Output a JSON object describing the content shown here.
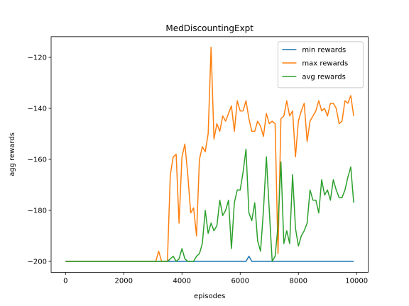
{
  "chart_data": {
    "type": "line",
    "title": "MedDiscountingExpt",
    "x_label": "episodes",
    "y_label": "agg rewards",
    "x": [
      0,
      100,
      200,
      300,
      400,
      500,
      600,
      700,
      800,
      900,
      1000,
      1100,
      1200,
      1300,
      1400,
      1500,
      1600,
      1700,
      1800,
      1900,
      2000,
      2100,
      2200,
      2300,
      2400,
      2500,
      2600,
      2700,
      2800,
      2900,
      3000,
      3100,
      3200,
      3300,
      3400,
      3500,
      3600,
      3700,
      3800,
      3900,
      4000,
      4100,
      4200,
      4300,
      4400,
      4500,
      4600,
      4700,
      4800,
      4900,
      5000,
      5100,
      5200,
      5300,
      5400,
      5500,
      5600,
      5700,
      5800,
      5900,
      6000,
      6100,
      6200,
      6300,
      6400,
      6500,
      6600,
      6700,
      6800,
      6900,
      7000,
      7100,
      7200,
      7300,
      7400,
      7500,
      7600,
      7700,
      7800,
      7900,
      8000,
      8100,
      8200,
      8300,
      8400,
      8500,
      8600,
      8700,
      8800,
      8900,
      9000,
      9100,
      9200,
      9300,
      9400,
      9500,
      9600,
      9700,
      9800,
      9900
    ],
    "series": [
      {
        "name": "min rewards",
        "color": "#1f77b4",
        "values": [
          -200,
          -200,
          -200,
          -200,
          -200,
          -200,
          -200,
          -200,
          -200,
          -200,
          -200,
          -200,
          -200,
          -200,
          -200,
          -200,
          -200,
          -200,
          -200,
          -200,
          -200,
          -200,
          -200,
          -200,
          -200,
          -200,
          -200,
          -200,
          -200,
          -200,
          -200,
          -200,
          -200,
          -200,
          -200,
          -200,
          -200,
          -200,
          -200,
          -200,
          -200,
          -200,
          -200,
          -200,
          -200,
          -200,
          -200,
          -200,
          -200,
          -200,
          -200,
          -200,
          -200,
          -200,
          -200,
          -200,
          -200,
          -200,
          -200,
          -200,
          -200,
          -200,
          -200,
          -198,
          -200,
          -200,
          -200,
          -200,
          -200,
          -200,
          -200,
          -200,
          -200,
          -200,
          -200,
          -200,
          -200,
          -200,
          -200,
          -200,
          -200,
          -200,
          -200,
          -200,
          -200,
          -200,
          -200,
          -200,
          -200,
          -200,
          -200,
          -200,
          -200,
          -200,
          -200,
          -200,
          -200,
          -200,
          -200,
          -200
        ]
      },
      {
        "name": "max rewards",
        "color": "#ff7f0e",
        "values": [
          -200,
          -200,
          -200,
          -200,
          -200,
          -200,
          -200,
          -200,
          -200,
          -200,
          -200,
          -200,
          -200,
          -200,
          -200,
          -200,
          -200,
          -200,
          -200,
          -200,
          -200,
          -200,
          -200,
          -200,
          -200,
          -200,
          -200,
          -200,
          -200,
          -200,
          -200,
          -200,
          -196,
          -200,
          -200,
          -200,
          -166,
          -159,
          -158,
          -185,
          -159,
          -154,
          -166,
          -181,
          -179,
          -190,
          -160,
          -155,
          -157,
          -150,
          -116,
          -152,
          -146,
          -149,
          -143,
          -145,
          -142,
          -139,
          -149,
          -137,
          -141,
          -141,
          -137,
          -144,
          -149,
          -149,
          -145,
          -147,
          -151,
          -142,
          -146,
          -145,
          -146,
          -197,
          -144,
          -143,
          -137,
          -143,
          -141,
          -159,
          -145,
          -141,
          -138,
          -153,
          -145,
          -143,
          -141,
          -137,
          -141,
          -140,
          -143,
          -138,
          -138,
          -140,
          -146,
          -145,
          -137,
          -138,
          -135,
          -143
        ]
      },
      {
        "name": "avg rewards",
        "color": "#2ca02c",
        "values": [
          -200,
          -200,
          -200,
          -200,
          -200,
          -200,
          -200,
          -200,
          -200,
          -200,
          -200,
          -200,
          -200,
          -200,
          -200,
          -200,
          -200,
          -200,
          -200,
          -200,
          -200,
          -200,
          -200,
          -200,
          -200,
          -200,
          -200,
          -200,
          -200,
          -200,
          -200,
          -200,
          -200,
          -200,
          -200,
          -200,
          -199,
          -198,
          -200,
          -199,
          -195,
          -199,
          -200,
          -200,
          -200,
          -198,
          -197,
          -193,
          -180,
          -189,
          -185,
          -188,
          -186,
          -176,
          -182,
          -180,
          -176,
          -195,
          -177,
          -172,
          -172,
          -165,
          -156,
          -181,
          -184,
          -177,
          -192,
          -196,
          -180,
          -159,
          -180,
          -200,
          -198,
          -186,
          -161,
          -193,
          -188,
          -193,
          -166,
          -187,
          -194,
          -190,
          -188,
          -185,
          -172,
          -176,
          -176,
          -181,
          -168,
          -174,
          -172,
          -176,
          -168,
          -172,
          -175,
          -175,
          -172,
          -167,
          -163,
          -177
        ]
      }
    ],
    "xlim": [
      -495,
      10395
    ],
    "ylim": [
      -204.3,
      -111.9
    ],
    "xticks": [
      0,
      2000,
      4000,
      6000,
      8000,
      10000
    ],
    "yticks": [
      {
        "value": -200,
        "label": "−200"
      },
      {
        "value": -180,
        "label": "−180"
      },
      {
        "value": -160,
        "label": "−160"
      },
      {
        "value": -140,
        "label": "−140"
      },
      {
        "value": -120,
        "label": "−120"
      }
    ],
    "legend": "upper right"
  }
}
